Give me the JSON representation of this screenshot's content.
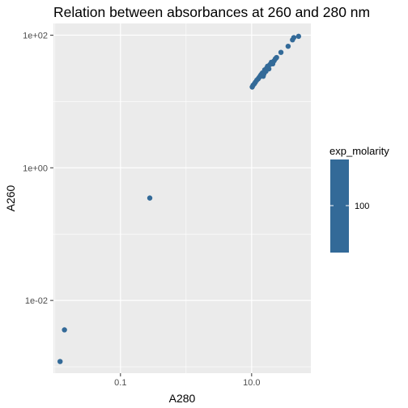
{
  "chart_data": {
    "type": "scatter",
    "title": "Relation between absorbances at 260 and 280 nm",
    "xlabel": "A280",
    "ylabel": "A260",
    "x_scale": "log10",
    "y_scale": "log10",
    "xlim": [
      0.0095,
      80
    ],
    "ylim": [
      0.0008,
      150
    ],
    "x_ticks": [
      {
        "value": 0.1,
        "label": "0.1"
      },
      {
        "value": 10,
        "label": "10.0"
      }
    ],
    "y_ticks": [
      {
        "value": 0.01,
        "label": "1e-02"
      },
      {
        "value": 1,
        "label": "1e+00"
      },
      {
        "value": 100,
        "label": "1e+02"
      }
    ],
    "grid": true,
    "background": "#EBEBEB",
    "point_color": "#336A98",
    "legend": {
      "title": "exp_molarity",
      "position": "right",
      "type": "colorbar",
      "labels": [
        "100"
      ],
      "color": "#336A98"
    },
    "points": [
      {
        "x": 0.012,
        "y": 0.0012
      },
      {
        "x": 0.014,
        "y": 0.0036
      },
      {
        "x": 0.28,
        "y": 0.35
      },
      {
        "x": 10.2,
        "y": 16.5
      },
      {
        "x": 10.5,
        "y": 17.5
      },
      {
        "x": 11.0,
        "y": 18.5
      },
      {
        "x": 11.4,
        "y": 19.5
      },
      {
        "x": 12.0,
        "y": 21.0
      },
      {
        "x": 12.6,
        "y": 22.0
      },
      {
        "x": 13.0,
        "y": 23.0
      },
      {
        "x": 13.6,
        "y": 24.5
      },
      {
        "x": 14.0,
        "y": 25.5
      },
      {
        "x": 14.6,
        "y": 27.0
      },
      {
        "x": 15.0,
        "y": 24.0
      },
      {
        "x": 15.4,
        "y": 26.0
      },
      {
        "x": 15.8,
        "y": 30.0
      },
      {
        "x": 16.5,
        "y": 28.5
      },
      {
        "x": 17.0,
        "y": 32.0
      },
      {
        "x": 17.5,
        "y": 34.0
      },
      {
        "x": 18.3,
        "y": 31.0
      },
      {
        "x": 19.0,
        "y": 36.0
      },
      {
        "x": 20.0,
        "y": 39.0
      },
      {
        "x": 21.0,
        "y": 37.0
      },
      {
        "x": 22.0,
        "y": 41.0
      },
      {
        "x": 23.0,
        "y": 44.0
      },
      {
        "x": 24.0,
        "y": 46.0
      },
      {
        "x": 28.0,
        "y": 55.0
      },
      {
        "x": 36.0,
        "y": 68.0
      },
      {
        "x": 42.0,
        "y": 85.0
      },
      {
        "x": 44.0,
        "y": 92.0
      },
      {
        "x": 52.0,
        "y": 96.0
      }
    ]
  }
}
